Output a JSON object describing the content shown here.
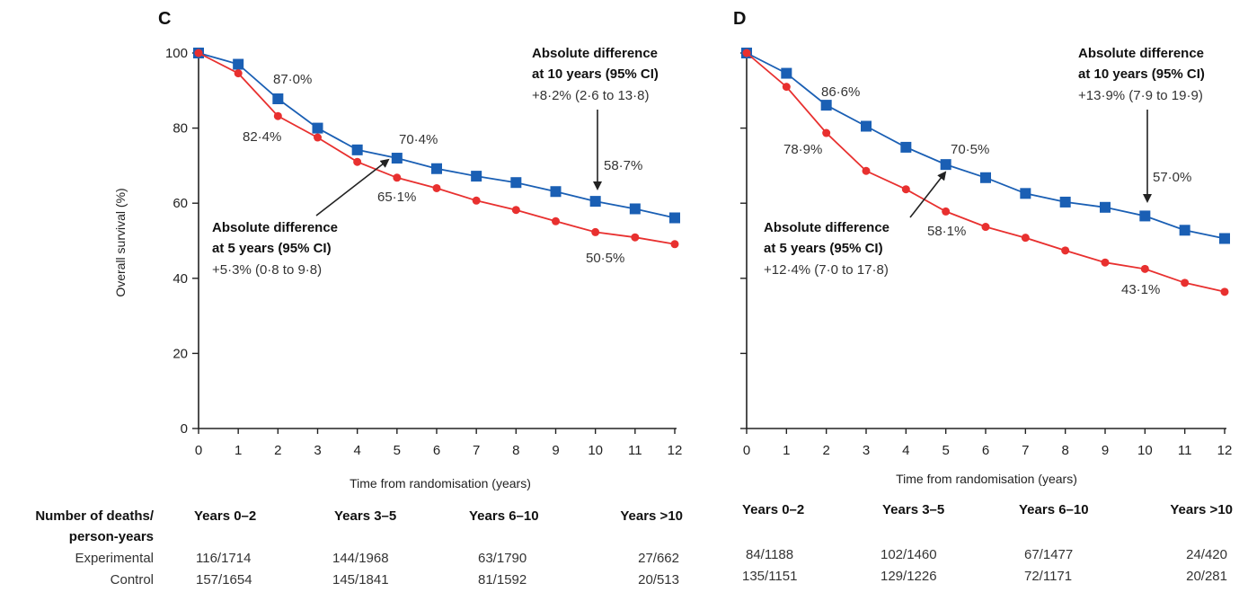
{
  "chart_data": [
    {
      "panel": "C",
      "type": "line",
      "xlabel": "Time from randomisation (years)",
      "ylabel": "Overall survival (%)",
      "xlim": [
        0,
        12
      ],
      "ylim": [
        0,
        100
      ],
      "x_ticks": [
        "0",
        "1",
        "2",
        "3",
        "4",
        "5",
        "6",
        "7",
        "8",
        "9",
        "10",
        "11",
        "12"
      ],
      "y_ticks": [
        "0",
        "20",
        "40",
        "60",
        "80",
        "100"
      ],
      "series": [
        {
          "color": "#1a5fb4",
          "marker": "square",
          "x": [
            0,
            1,
            2,
            3,
            4,
            5,
            6,
            7,
            8,
            9,
            10,
            11,
            12
          ],
          "y": [
            100,
            97,
            87.8,
            80,
            74.2,
            72,
            69.2,
            67.2,
            65.5,
            63.1,
            60.5,
            58.5,
            56.1
          ]
        },
        {
          "color": "#e8302f",
          "marker": "circle",
          "x": [
            0,
            1,
            2,
            3,
            4,
            5,
            6,
            7,
            8,
            9,
            10,
            11,
            12
          ],
          "y": [
            100,
            94.6,
            83.2,
            77.5,
            71,
            66.8,
            64,
            60.7,
            58.2,
            55.2,
            52.3,
            50.9,
            49.1
          ]
        }
      ],
      "point_labels": [
        "87·0%",
        "82·4%",
        "70·4%",
        "65·1%",
        "58·7%",
        "50·5%"
      ],
      "annotations": {
        "five_year": {
          "title_1": "Absolute difference",
          "title_2": "at 5 years (95% CI)",
          "value": "+5·3% (0·8 to 9·8)"
        },
        "ten_year": {
          "title_1": "Absolute difference",
          "title_2": "at 10 years (95% CI)",
          "value": "+8·2% (2·6 to 13·8)"
        }
      },
      "table": {
        "headers": [
          "Years 0–2",
          "Years 3–5",
          "Years 6–10",
          "Years >10"
        ],
        "experimental": [
          "116/1714",
          "144/1968",
          "63/1790",
          "27/662"
        ],
        "control": [
          "157/1654",
          "145/1841",
          "81/1592",
          "20/513"
        ]
      }
    },
    {
      "panel": "D",
      "type": "line",
      "xlabel": "Time from randomisation (years)",
      "ylabel": "",
      "xlim": [
        0,
        12
      ],
      "ylim": [
        0,
        100
      ],
      "x_ticks": [
        "0",
        "1",
        "2",
        "3",
        "4",
        "5",
        "6",
        "7",
        "8",
        "9",
        "10",
        "11",
        "12"
      ],
      "series": [
        {
          "color": "#1a5fb4",
          "marker": "square",
          "x": [
            0,
            1,
            2,
            3,
            4,
            5,
            6,
            7,
            8,
            9,
            10,
            11,
            12
          ],
          "y": [
            100,
            94.6,
            86.1,
            80.5,
            74.9,
            70.3,
            66.8,
            62.6,
            60.3,
            58.9,
            56.6,
            52.8,
            50.6
          ]
        },
        {
          "color": "#e8302f",
          "marker": "circle",
          "x": [
            0,
            1,
            2,
            3,
            4,
            5,
            6,
            7,
            8,
            9,
            10,
            11,
            12
          ],
          "y": [
            100,
            91,
            78.7,
            68.6,
            63.7,
            57.8,
            53.7,
            50.8,
            47.4,
            44.2,
            42.5,
            38.8,
            36.4
          ]
        }
      ],
      "point_labels": [
        "86·6%",
        "78·9%",
        "70·5%",
        "58·1%",
        "57·0%",
        "43·1%"
      ],
      "annotations": {
        "five_year": {
          "title_1": "Absolute difference",
          "title_2": "at 5 years (95% CI)",
          "value": "+12·4% (7·0 to 17·8)"
        },
        "ten_year": {
          "title_1": "Absolute difference",
          "title_2": "at 10 years (95% CI)",
          "value": "+13·9% (7·9 to 19·9)"
        }
      },
      "table": {
        "headers": [
          "Years 0–2",
          "Years 3–5",
          "Years 6–10",
          "Years >10"
        ],
        "experimental": [
          "84/1188",
          "102/1460",
          "67/1477",
          "24/420"
        ],
        "control": [
          "135/1151",
          "129/1226",
          "72/1171",
          "20/281"
        ]
      }
    }
  ],
  "table_row_labels": {
    "header_line1": "Number of deaths/",
    "header_line2": "person-years",
    "experimental": "Experimental",
    "control": "Control"
  }
}
